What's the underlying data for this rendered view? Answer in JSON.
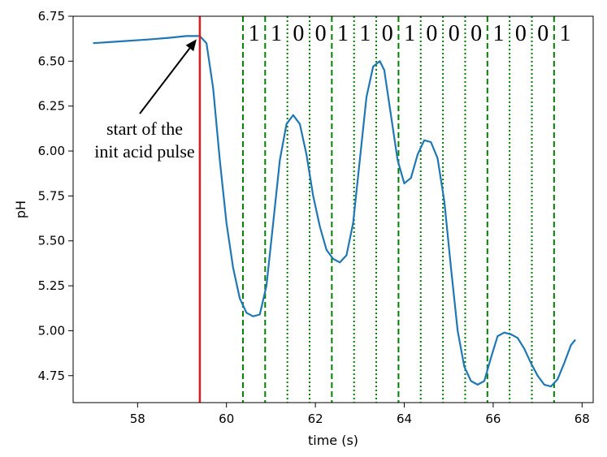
{
  "chart_data": {
    "type": "line",
    "title": "",
    "xlabel": "time (s)",
    "ylabel": "pH",
    "xlim": [
      56.55,
      68.25
    ],
    "ylim": [
      4.6,
      6.75
    ],
    "xticks": [
      "58",
      "60",
      "62",
      "64",
      "66",
      "68"
    ],
    "yticks": [
      "4.75",
      "5.00",
      "5.25",
      "5.50",
      "5.75",
      "6.00",
      "6.25",
      "6.50",
      "6.75"
    ],
    "series": [
      {
        "color": "#1f77b4",
        "x": [
          57.0,
          57.6,
          58.2,
          58.7,
          59.1,
          59.4,
          59.55,
          59.7,
          59.85,
          60.0,
          60.15,
          60.3,
          60.45,
          60.6,
          60.75,
          60.9,
          61.05,
          61.2,
          61.35,
          61.5,
          61.65,
          61.8,
          61.95,
          62.1,
          62.25,
          62.4,
          62.55,
          62.7,
          62.85,
          63.0,
          63.15,
          63.3,
          63.45,
          63.55,
          63.7,
          63.85,
          64.0,
          64.15,
          64.3,
          64.45,
          64.6,
          64.75,
          64.9,
          65.05,
          65.2,
          65.35,
          65.5,
          65.65,
          65.8,
          65.95,
          66.1,
          66.25,
          66.4,
          66.55,
          66.7,
          66.85,
          67.0,
          67.15,
          67.3,
          67.45,
          67.6,
          67.75,
          67.85
        ],
        "y": [
          6.6,
          6.61,
          6.62,
          6.63,
          6.64,
          6.64,
          6.6,
          6.35,
          5.95,
          5.6,
          5.35,
          5.18,
          5.1,
          5.08,
          5.09,
          5.25,
          5.6,
          5.95,
          6.15,
          6.2,
          6.15,
          5.98,
          5.75,
          5.58,
          5.45,
          5.4,
          5.38,
          5.42,
          5.6,
          5.95,
          6.3,
          6.47,
          6.5,
          6.45,
          6.2,
          5.95,
          5.82,
          5.85,
          5.98,
          6.06,
          6.05,
          5.96,
          5.72,
          5.35,
          5.0,
          4.8,
          4.72,
          4.7,
          4.72,
          4.85,
          4.97,
          4.99,
          4.98,
          4.96,
          4.9,
          4.82,
          4.75,
          4.7,
          4.69,
          4.73,
          4.82,
          4.92,
          4.95
        ]
      }
    ],
    "event_line": {
      "x": 59.4,
      "color": "#e31a1c"
    },
    "dashed_lines_x": [
      60.37,
      60.87,
      62.37,
      63.87,
      65.87,
      67.37
    ],
    "dotted_lines_x": [
      61.37,
      61.87,
      62.87,
      63.37,
      64.37,
      64.87,
      65.37,
      66.37,
      66.87
    ],
    "bit_labels": [
      {
        "text": "1",
        "x": 60.62
      },
      {
        "text": "1",
        "x": 61.12
      },
      {
        "text": "0",
        "x": 61.62
      },
      {
        "text": "0",
        "x": 62.12
      },
      {
        "text": "1",
        "x": 62.62
      },
      {
        "text": "1",
        "x": 63.12
      },
      {
        "text": "0",
        "x": 63.62
      },
      {
        "text": "1",
        "x": 64.12
      },
      {
        "text": "0",
        "x": 64.62
      },
      {
        "text": "0",
        "x": 65.12
      },
      {
        "text": "0",
        "x": 65.62
      },
      {
        "text": "1",
        "x": 66.12
      },
      {
        "text": "0",
        "x": 66.62
      },
      {
        "text": "0",
        "x": 67.12
      },
      {
        "text": "1",
        "x": 67.62
      }
    ],
    "annotation": {
      "line1": "start of the",
      "line2": "init acid pulse",
      "arrow_target": {
        "x": 59.4,
        "y": 6.64
      }
    }
  }
}
